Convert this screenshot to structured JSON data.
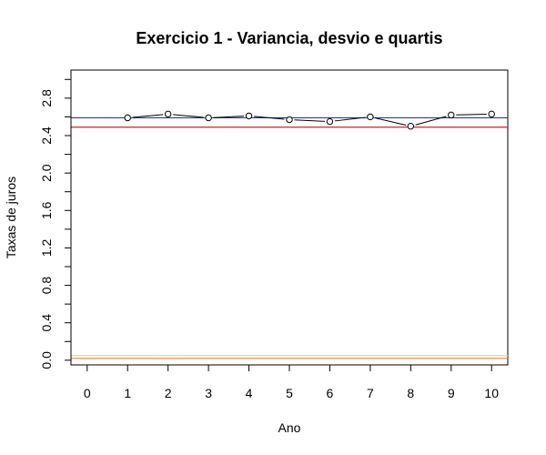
{
  "chart_data": {
    "type": "line",
    "title": "Exercicio 1 - Variancia, desvio e quartis",
    "xlabel": "Ano",
    "ylabel": "Taxas de juros",
    "xlim": [
      -0.4,
      10.4
    ],
    "ylim": [
      -0.05,
      3.1
    ],
    "x_ticks": [
      0,
      1,
      2,
      3,
      4,
      5,
      6,
      7,
      8,
      9,
      10
    ],
    "y_ticks": [
      0.0,
      0.4,
      0.8,
      1.2,
      1.6,
      2.0,
      2.4,
      2.8
    ],
    "y_tick_labels": [
      "0.0",
      "0.4",
      "0.8",
      "1.2",
      "1.6",
      "2.0",
      "2.4",
      "2.8"
    ],
    "y_minor_ticks": [
      0.2,
      0.6,
      1.0,
      1.4,
      1.8,
      2.2,
      2.6,
      3.0
    ],
    "grid": false,
    "legend": "none",
    "series": [
      {
        "x": [
          1,
          2,
          3,
          4,
          5,
          6,
          7,
          8,
          9,
          10
        ],
        "y": [
          2.59,
          2.63,
          2.59,
          2.61,
          2.57,
          2.55,
          2.6,
          2.5,
          2.62,
          2.63
        ],
        "color": "#000000",
        "marker": "open-circle"
      }
    ],
    "reference_lines": [
      {
        "y": 2.59,
        "color": "#1f3f9f"
      },
      {
        "y": 2.49,
        "color": "#cc2222"
      },
      {
        "y": 0.05,
        "color": "#f5d27a"
      },
      {
        "y": 0.02,
        "color": "#e08840"
      }
    ]
  }
}
